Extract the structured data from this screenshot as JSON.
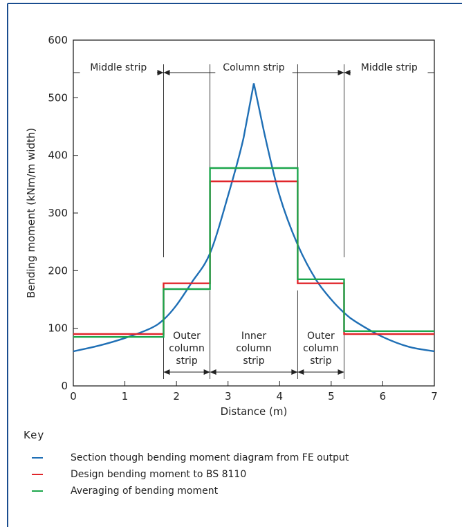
{
  "colors": {
    "frame": "#1a4d8f",
    "fe": "#1f6fb5",
    "bs": "#e0262b",
    "avg": "#1ca64c",
    "ink": "#222222"
  },
  "chart_data": {
    "type": "line",
    "xlabel": "Distance  (m)",
    "ylabel": "Bending  moment  (kNm/m  width)",
    "xlim": [
      0,
      7
    ],
    "ylim": [
      0,
      600
    ],
    "x_ticks": [
      "0",
      "1",
      "2",
      "3",
      "4",
      "5",
      "6",
      "7"
    ],
    "y_ticks": [
      "0",
      "100",
      "200",
      "300",
      "400",
      "500",
      "600"
    ],
    "boundaries": [
      1.75,
      2.65,
      4.35,
      5.25
    ],
    "top_zones": [
      {
        "label": "Middle  strip",
        "from": 0,
        "to": 1.75
      },
      {
        "label": "Column  strip",
        "from": 1.75,
        "to": 5.25
      },
      {
        "label": "Middle  strip",
        "from": 5.25,
        "to": 7
      }
    ],
    "bottom_zones": [
      {
        "lines": [
          "Outer",
          "column",
          "strip"
        ],
        "from": 1.75,
        "to": 2.65
      },
      {
        "lines": [
          "Inner",
          "column",
          "strip"
        ],
        "from": 2.65,
        "to": 4.35
      },
      {
        "lines": [
          "Outer",
          "column",
          "strip"
        ],
        "from": 4.35,
        "to": 5.25
      }
    ],
    "series": [
      {
        "name": "Section though bending moment diagram from FE output",
        "kind": "curve",
        "x": [
          0,
          0.5,
          1.0,
          1.5,
          1.75,
          2.0,
          2.3,
          2.65,
          3.0,
          3.3,
          3.5,
          3.7,
          4.0,
          4.35,
          4.7,
          5.0,
          5.25,
          5.5,
          6.0,
          6.5,
          7.0
        ],
        "y": [
          60,
          70,
          83,
          100,
          115,
          140,
          180,
          230,
          330,
          430,
          525,
          440,
          330,
          245,
          185,
          150,
          127,
          110,
          85,
          68,
          60
        ]
      },
      {
        "name": "Design bending moment to BS 8110",
        "kind": "step",
        "segments": [
          {
            "from": 0,
            "to": 1.75,
            "value": 90
          },
          {
            "from": 1.75,
            "to": 2.65,
            "value": 178
          },
          {
            "from": 2.65,
            "to": 4.35,
            "value": 355
          },
          {
            "from": 4.35,
            "to": 5.25,
            "value": 178
          },
          {
            "from": 5.25,
            "to": 7,
            "value": 90
          }
        ]
      },
      {
        "name": "Averaging of bending moment",
        "kind": "step",
        "segments": [
          {
            "from": 0,
            "to": 1.75,
            "value": 85
          },
          {
            "from": 1.75,
            "to": 2.65,
            "value": 168
          },
          {
            "from": 2.65,
            "to": 4.35,
            "value": 378
          },
          {
            "from": 4.35,
            "to": 5.25,
            "value": 185
          },
          {
            "from": 5.25,
            "to": 7,
            "value": 95
          }
        ]
      }
    ]
  },
  "legend": {
    "title": "Key",
    "items": [
      {
        "label": "Section though bending moment diagram from FE output",
        "color": "#1f6fb5"
      },
      {
        "label": "Design bending moment to BS 8110",
        "color": "#e0262b"
      },
      {
        "label": "Averaging of bending moment",
        "color": "#1ca64c"
      }
    ]
  }
}
